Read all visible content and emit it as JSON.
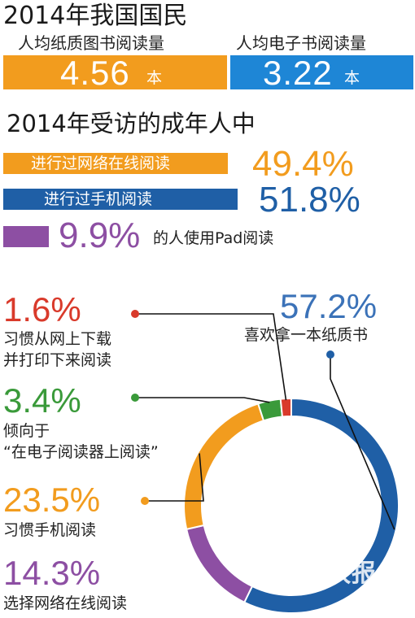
{
  "header": {
    "title": "2014年我国国民",
    "paper_label": "人均纸质图书阅读量",
    "ebook_label": "人均电子书阅读量",
    "paper_value": "4.56",
    "ebook_value": "3.22",
    "unit": "本"
  },
  "survey": {
    "title": "2014年受访的成年人中",
    "items": [
      {
        "label": "进行过网络在线阅读",
        "value": "49.4%",
        "percent": 49.4,
        "color": "#f29c1e"
      },
      {
        "label": "进行过手机阅读",
        "value": "51.8%",
        "percent": 51.8,
        "color": "#1f5fa6"
      },
      {
        "label": "的人使用Pad阅读",
        "value": "9.9%",
        "percent": 9.9,
        "color": "#8d4fa3"
      }
    ]
  },
  "chart_data": {
    "type": "pie",
    "style": "donut",
    "slices": [
      {
        "value": 57.2,
        "display": "57.2%",
        "label": "喜欢拿一本纸质书",
        "color": "#1f5fa6"
      },
      {
        "value": 14.3,
        "display": "14.3%",
        "label": "选择网络在线阅读",
        "color": "#8d4fa3"
      },
      {
        "value": 23.5,
        "display": "23.5%",
        "label": "习惯手机阅读",
        "color": "#f29c1e"
      },
      {
        "value": 3.4,
        "display": "3.4%",
        "label": "倾向于“在电子阅读器上阅读”",
        "label_lines": [
          "倾向于",
          "“在电子阅读器上阅读”"
        ],
        "color": "#3a9a3a"
      },
      {
        "value": 1.6,
        "display": "1.6%",
        "label": "习惯从网上下载并打印下来阅读",
        "label_lines": [
          "习惯从网上下载",
          "并打印下来阅读"
        ],
        "color": "#d93a2b"
      }
    ]
  },
  "watermark": "新快报"
}
